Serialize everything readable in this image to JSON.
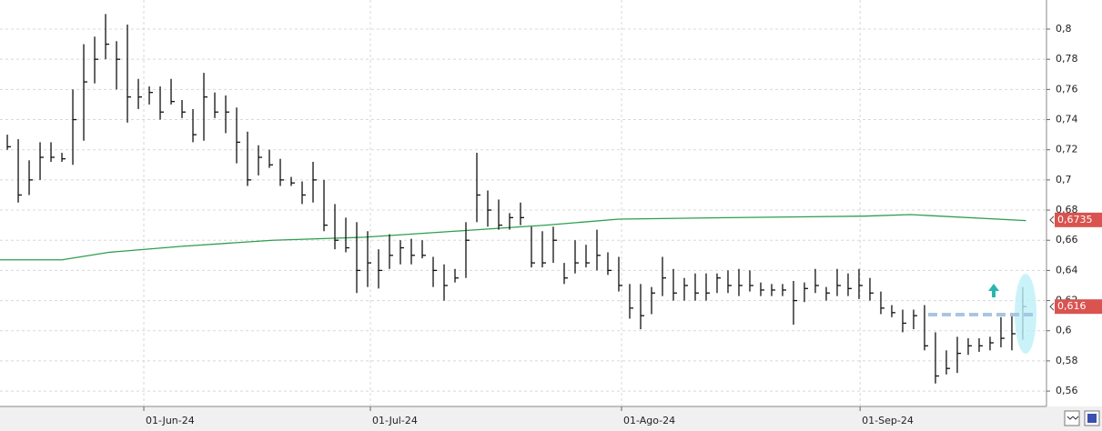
{
  "chart_data": {
    "type": "ohlc",
    "high": [
      0.73,
      0.727,
      0.713,
      0.725,
      0.725,
      0.718,
      0.76,
      0.79,
      0.795,
      0.81,
      0.792,
      0.803,
      0.767,
      0.762,
      0.762,
      0.767,
      0.753,
      0.747,
      0.771,
      0.758,
      0.756,
      0.748,
      0.732,
      0.723,
      0.72,
      0.714,
      0.702,
      0.699,
      0.712,
      0.7,
      0.684,
      0.675,
      0.672,
      0.666,
      0.654,
      0.664,
      0.66,
      0.661,
      0.66,
      0.649,
      0.644,
      0.641,
      0.672,
      0.718,
      0.693,
      0.687,
      0.678,
      0.685,
      0.669,
      0.666,
      0.669,
      0.645,
      0.66,
      0.657,
      0.667,
      0.652,
      0.649,
      0.631,
      0.631,
      0.629,
      0.649,
      0.641,
      0.635,
      0.638,
      0.638,
      0.638,
      0.64,
      0.641,
      0.64,
      0.632,
      0.631,
      0.631,
      0.633,
      0.632,
      0.641,
      0.629,
      0.641,
      0.638,
      0.641,
      0.635,
      0.626,
      0.617,
      0.614,
      0.614,
      0.617,
      0.599,
      0.587,
      0.596,
      0.595,
      0.595,
      0.596,
      0.609,
      0.611,
      0.629
    ],
    "low": [
      0.72,
      0.685,
      0.69,
      0.7,
      0.712,
      0.712,
      0.71,
      0.726,
      0.764,
      0.78,
      0.76,
      0.738,
      0.747,
      0.75,
      0.74,
      0.75,
      0.741,
      0.725,
      0.726,
      0.741,
      0.731,
      0.711,
      0.696,
      0.703,
      0.708,
      0.696,
      0.696,
      0.684,
      0.685,
      0.666,
      0.654,
      0.652,
      0.625,
      0.629,
      0.628,
      0.641,
      0.644,
      0.644,
      0.648,
      0.629,
      0.62,
      0.632,
      0.635,
      0.672,
      0.669,
      0.667,
      0.667,
      0.67,
      0.642,
      0.642,
      0.645,
      0.631,
      0.638,
      0.642,
      0.64,
      0.637,
      0.626,
      0.608,
      0.601,
      0.611,
      0.623,
      0.62,
      0.62,
      0.62,
      0.62,
      0.625,
      0.625,
      0.623,
      0.626,
      0.623,
      0.623,
      0.623,
      0.604,
      0.619,
      0.625,
      0.62,
      0.623,
      0.623,
      0.621,
      0.62,
      0.611,
      0.609,
      0.599,
      0.601,
      0.587,
      0.565,
      0.571,
      0.572,
      0.584,
      0.586,
      0.587,
      0.589,
      0.587,
      0.594
    ],
    "close": [
      0.722,
      0.69,
      0.7,
      0.715,
      0.715,
      0.714,
      0.74,
      0.765,
      0.78,
      0.79,
      0.78,
      0.755,
      0.755,
      0.758,
      0.745,
      0.752,
      0.745,
      0.73,
      0.755,
      0.745,
      0.745,
      0.725,
      0.7,
      0.715,
      0.71,
      0.7,
      0.698,
      0.69,
      0.7,
      0.67,
      0.66,
      0.655,
      0.64,
      0.645,
      0.64,
      0.65,
      0.655,
      0.65,
      0.65,
      0.64,
      0.63,
      0.635,
      0.66,
      0.69,
      0.68,
      0.67,
      0.675,
      0.675,
      0.645,
      0.645,
      0.66,
      0.635,
      0.645,
      0.645,
      0.65,
      0.64,
      0.63,
      0.615,
      0.61,
      0.625,
      0.635,
      0.625,
      0.63,
      0.625,
      0.625,
      0.635,
      0.63,
      0.63,
      0.63,
      0.627,
      0.627,
      0.627,
      0.62,
      0.628,
      0.63,
      0.625,
      0.63,
      0.628,
      0.63,
      0.625,
      0.615,
      0.612,
      0.605,
      0.61,
      0.59,
      0.57,
      0.575,
      0.585,
      0.59,
      0.59,
      0.592,
      0.595,
      0.598,
      0.616
    ],
    "bar_color": "#111111",
    "ma": {
      "color": "#2e9e4f",
      "x": [
        -0.67,
        5,
        9.3,
        16,
        24.3,
        32.7,
        41,
        49.3,
        56,
        66,
        78.5,
        82.7,
        93.3
      ],
      "values": [
        0.647,
        0.647,
        0.652,
        0.656,
        0.66,
        0.662,
        0.666,
        0.67,
        0.674,
        0.675,
        0.676,
        0.677,
        0.673
      ]
    },
    "xlim": [
      -0.67,
      95.17
    ],
    "xticks": [
      {
        "value": 12.5,
        "label": "01-Jun-24"
      },
      {
        "value": 33.25,
        "label": "01-Jul-24"
      },
      {
        "value": 56.25,
        "label": "01-Ago-24"
      },
      {
        "value": 78.1,
        "label": "01-Sep-24"
      }
    ],
    "ylim": [
      0.5498,
      0.8193
    ],
    "yticks": [
      {
        "value": 0.56,
        "label": "0,56"
      },
      {
        "value": 0.58,
        "label": "0,58"
      },
      {
        "value": 0.6,
        "label": "0,6"
      },
      {
        "value": 0.62,
        "label": "0,62"
      },
      {
        "value": 0.64,
        "label": "0,64"
      },
      {
        "value": 0.66,
        "label": "0,66"
      },
      {
        "value": 0.68,
        "label": "0,68"
      },
      {
        "value": 0.7,
        "label": "0,7"
      },
      {
        "value": 0.72,
        "label": "0,72"
      },
      {
        "value": 0.74,
        "label": "0,74"
      },
      {
        "value": 0.76,
        "label": "0,76"
      },
      {
        "value": 0.78,
        "label": "0,78"
      },
      {
        "value": 0.8,
        "label": "0,8"
      }
    ],
    "grid": true,
    "price_labels": [
      {
        "value": 0.6735,
        "label": "0,6735"
      },
      {
        "value": 0.616,
        "label": "0,616"
      }
    ],
    "price_label_color": "#d9534f"
  }
}
